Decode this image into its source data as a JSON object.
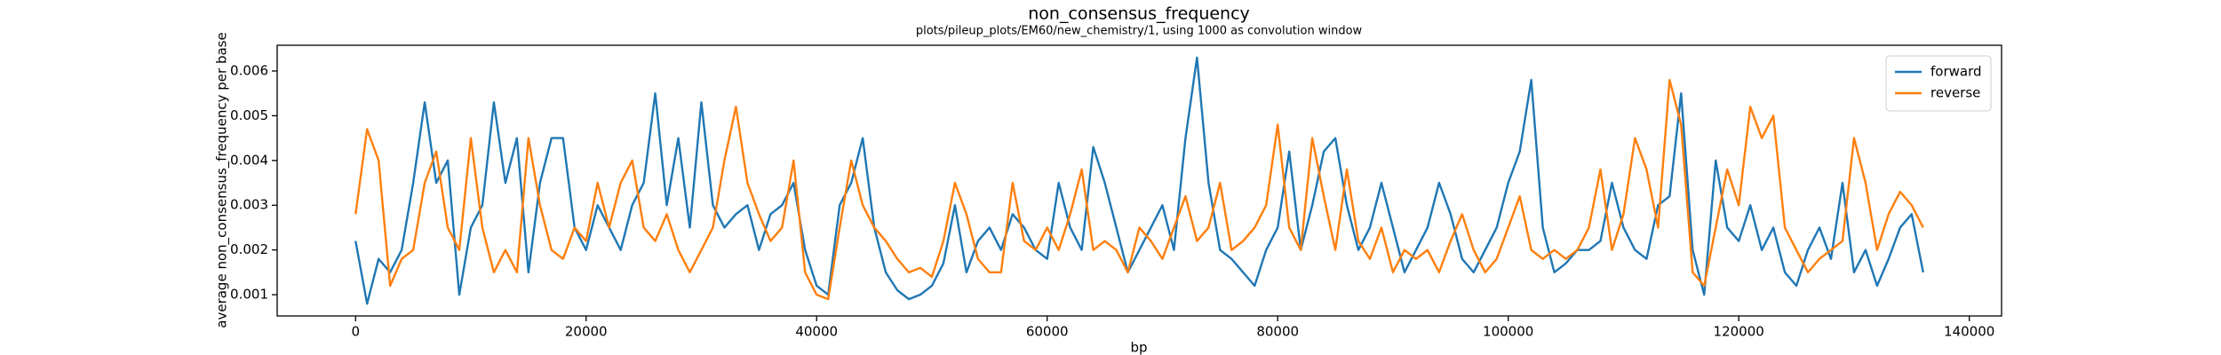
{
  "chart_data": {
    "type": "line",
    "title": "non_consensus_frequency",
    "subtitle": "plots/pileup_plots/EM60/new_chemistry/1, using 1000 as convolution window",
    "xlabel": "bp",
    "ylabel": "average non_consensus_frequency per base",
    "legend": "upper right",
    "xlim": [
      -6800,
      142800
    ],
    "ylim": [
      0.000525,
      0.006575
    ],
    "xticks": [
      0,
      20000,
      40000,
      60000,
      80000,
      100000,
      120000,
      140000
    ],
    "yticks": [
      0.001,
      0.002,
      0.003,
      0.004,
      0.005,
      0.006
    ],
    "x": [
      0,
      1000,
      2000,
      3000,
      4000,
      5000,
      6000,
      7000,
      8000,
      9000,
      10000,
      11000,
      12000,
      13000,
      14000,
      15000,
      16000,
      17000,
      18000,
      19000,
      20000,
      21000,
      22000,
      23000,
      24000,
      25000,
      26000,
      27000,
      28000,
      29000,
      30000,
      31000,
      32000,
      33000,
      34000,
      35000,
      36000,
      37000,
      38000,
      39000,
      40000,
      41000,
      42000,
      43000,
      44000,
      45000,
      46000,
      47000,
      48000,
      49000,
      50000,
      51000,
      52000,
      53000,
      54000,
      55000,
      56000,
      57000,
      58000,
      59000,
      60000,
      61000,
      62000,
      63000,
      64000,
      65000,
      66000,
      67000,
      68000,
      69000,
      70000,
      71000,
      72000,
      73000,
      74000,
      75000,
      76000,
      77000,
      78000,
      79000,
      80000,
      81000,
      82000,
      83000,
      84000,
      85000,
      86000,
      87000,
      88000,
      89000,
      90000,
      91000,
      92000,
      93000,
      94000,
      95000,
      96000,
      97000,
      98000,
      99000,
      100000,
      101000,
      102000,
      103000,
      104000,
      105000,
      106000,
      107000,
      108000,
      109000,
      110000,
      111000,
      112000,
      113000,
      114000,
      115000,
      116000,
      117000,
      118000,
      119000,
      120000,
      121000,
      122000,
      123000,
      124000,
      125000,
      126000,
      127000,
      128000,
      129000,
      130000,
      131000,
      132000,
      133000,
      134000,
      135000,
      136000
    ],
    "series": [
      {
        "name": "forward",
        "color": "#1f77b4",
        "values": [
          0.0022,
          0.0008,
          0.0018,
          0.0015,
          0.002,
          0.0035,
          0.0053,
          0.0035,
          0.004,
          0.001,
          0.0025,
          0.003,
          0.0053,
          0.0035,
          0.0045,
          0.0015,
          0.0035,
          0.0045,
          0.0045,
          0.0025,
          0.002,
          0.003,
          0.0025,
          0.002,
          0.003,
          0.0035,
          0.0055,
          0.003,
          0.0045,
          0.0025,
          0.0053,
          0.003,
          0.0025,
          0.0028,
          0.003,
          0.002,
          0.0028,
          0.003,
          0.0035,
          0.002,
          0.0012,
          0.001,
          0.003,
          0.0035,
          0.0045,
          0.0025,
          0.0015,
          0.0011,
          0.0009,
          0.001,
          0.0012,
          0.0017,
          0.003,
          0.0015,
          0.0022,
          0.0025,
          0.002,
          0.0028,
          0.0025,
          0.002,
          0.0018,
          0.0035,
          0.0025,
          0.002,
          0.0043,
          0.0035,
          0.0025,
          0.0015,
          0.002,
          0.0025,
          0.003,
          0.002,
          0.0045,
          0.0063,
          0.0035,
          0.002,
          0.0018,
          0.0015,
          0.0012,
          0.002,
          0.0025,
          0.0042,
          0.002,
          0.003,
          0.0042,
          0.0045,
          0.003,
          0.002,
          0.0025,
          0.0035,
          0.0025,
          0.0015,
          0.002,
          0.0025,
          0.0035,
          0.0028,
          0.0018,
          0.0015,
          0.002,
          0.0025,
          0.0035,
          0.0042,
          0.0058,
          0.0025,
          0.0015,
          0.0017,
          0.002,
          0.002,
          0.0022,
          0.0035,
          0.0025,
          0.002,
          0.0018,
          0.003,
          0.0032,
          0.0055,
          0.002,
          0.001,
          0.004,
          0.0025,
          0.0022,
          0.003,
          0.002,
          0.0025,
          0.0015,
          0.0012,
          0.002,
          0.0025,
          0.0018,
          0.0035,
          0.0015,
          0.002,
          0.0012,
          0.0018,
          0.0025,
          0.0028,
          0.0015
        ]
      },
      {
        "name": "reverse",
        "color": "#ff7f0e",
        "values": [
          0.0028,
          0.0047,
          0.004,
          0.0012,
          0.0018,
          0.002,
          0.0035,
          0.0042,
          0.0025,
          0.002,
          0.0045,
          0.0025,
          0.0015,
          0.002,
          0.0015,
          0.0045,
          0.003,
          0.002,
          0.0018,
          0.0025,
          0.0022,
          0.0035,
          0.0025,
          0.0035,
          0.004,
          0.0025,
          0.0022,
          0.0028,
          0.002,
          0.0015,
          0.002,
          0.0025,
          0.004,
          0.0052,
          0.0035,
          0.0028,
          0.0022,
          0.0025,
          0.004,
          0.0015,
          0.001,
          0.0009,
          0.0025,
          0.004,
          0.003,
          0.0025,
          0.0022,
          0.0018,
          0.0015,
          0.0016,
          0.0014,
          0.0022,
          0.0035,
          0.0028,
          0.0018,
          0.0015,
          0.0015,
          0.0035,
          0.0022,
          0.002,
          0.0025,
          0.002,
          0.0028,
          0.0038,
          0.002,
          0.0022,
          0.002,
          0.0015,
          0.0025,
          0.0022,
          0.0018,
          0.0025,
          0.0032,
          0.0022,
          0.0025,
          0.0035,
          0.002,
          0.0022,
          0.0025,
          0.003,
          0.0048,
          0.0025,
          0.002,
          0.0045,
          0.0032,
          0.002,
          0.0038,
          0.0022,
          0.0018,
          0.0025,
          0.0015,
          0.002,
          0.0018,
          0.002,
          0.0015,
          0.0022,
          0.0028,
          0.002,
          0.0015,
          0.0018,
          0.0025,
          0.0032,
          0.002,
          0.0018,
          0.002,
          0.0018,
          0.002,
          0.0025,
          0.0038,
          0.002,
          0.0028,
          0.0045,
          0.0038,
          0.0025,
          0.0058,
          0.0048,
          0.0015,
          0.0012,
          0.0025,
          0.0038,
          0.003,
          0.0052,
          0.0045,
          0.005,
          0.0025,
          0.002,
          0.0015,
          0.0018,
          0.002,
          0.0022,
          0.0045,
          0.0035,
          0.002,
          0.0028,
          0.0033,
          0.003,
          0.0025
        ]
      }
    ]
  }
}
